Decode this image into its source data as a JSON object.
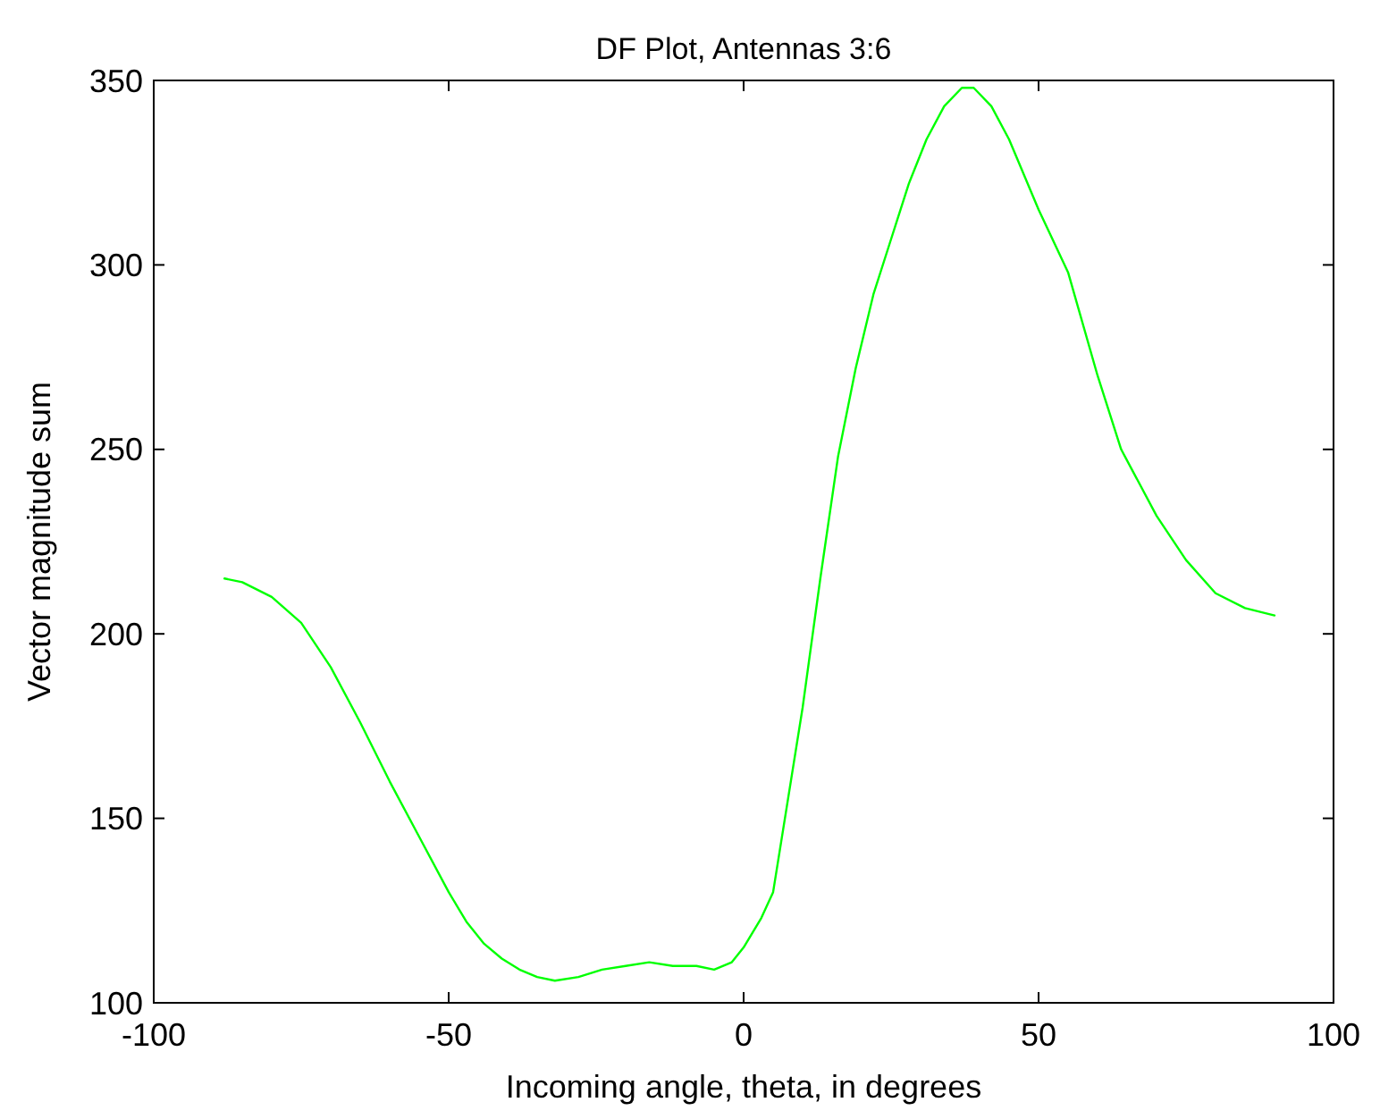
{
  "chart_data": {
    "type": "line",
    "title": "DF Plot, Antennas 3:6",
    "xlabel": "Incoming angle, theta, in degrees",
    "ylabel": "Vector magnitude sum",
    "x": [
      -88,
      -85,
      -80,
      -75,
      -70,
      -65,
      -60,
      -55,
      -50,
      -47,
      -44,
      -41,
      -38,
      -35,
      -32,
      -28,
      -24,
      -20,
      -16,
      -12,
      -8,
      -5,
      -2,
      0,
      3,
      5,
      8,
      10,
      13,
      16,
      19,
      22,
      25,
      28,
      31,
      34,
      37,
      39,
      42,
      45,
      50,
      55,
      60,
      64,
      70,
      75,
      80,
      85,
      90
    ],
    "series": [
      {
        "color": "#00ff00",
        "values": [
          215,
          214,
          210,
          203,
          191,
          176,
          160,
          145,
          130,
          122,
          116,
          112,
          109,
          107,
          106,
          107,
          109,
          110,
          111,
          110,
          110,
          109,
          111,
          115,
          123,
          130,
          160,
          180,
          215,
          248,
          272,
          292,
          307,
          322,
          334,
          343,
          348,
          348,
          343,
          334,
          315,
          298,
          270,
          250,
          232,
          220,
          211,
          207,
          205
        ]
      }
    ],
    "xlim": [
      -100,
      100
    ],
    "xticks": [
      -100,
      -50,
      0,
      50,
      100
    ],
    "ylim": [
      100,
      350
    ],
    "yticks": [
      100,
      150,
      200,
      250,
      300,
      350
    ],
    "grid": false,
    "line_style": "solid",
    "marker": "none"
  }
}
